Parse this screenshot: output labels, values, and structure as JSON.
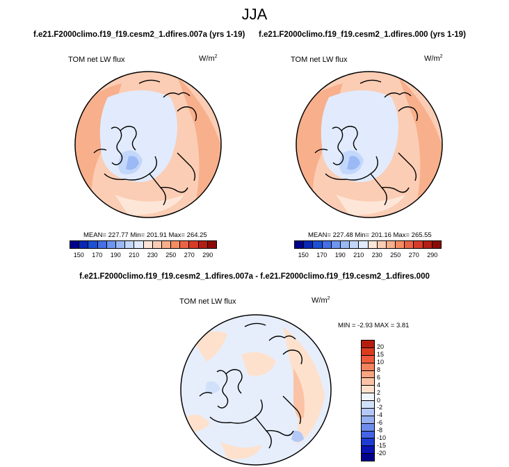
{
  "season": "JJA",
  "panels": [
    {
      "case_title": "f.e21.F2000climo.f19_f19.cesm2_1.dfires.007a (yrs 1-19)",
      "variable": "TOM net LW flux",
      "units_base": "W/m",
      "units_exp": "2",
      "stats": "MEAN= 227.77  Min= 201.91  Max= 264.25"
    },
    {
      "case_title": "f.e21.F2000climo.f19_f19.cesm2_1.dfires.000 (yrs 1-19)",
      "variable": "TOM net LW flux",
      "units_base": "W/m",
      "units_exp": "2",
      "stats": "MEAN= 227.48  Min= 201.16  Max= 265.55"
    }
  ],
  "colorbar": {
    "colors": [
      "#00008b",
      "#0a28b4",
      "#1e50d2",
      "#466ee6",
      "#6e96f0",
      "#9bb9f5",
      "#c3d7fa",
      "#e1ebfd",
      "#fde6d7",
      "#fbcdb4",
      "#f8af8c",
      "#f58c64",
      "#eb6446",
      "#d73c28",
      "#b41e14",
      "#8c0a05"
    ],
    "tick_labels": [
      "150",
      "170",
      "190",
      "210",
      "230",
      "250",
      "270",
      "290"
    ]
  },
  "difference": {
    "title": "f.e21.F2000climo.f19_f19.cesm2_1.dfires.007a - f.e21.F2000climo.f19_f19.cesm2_1.dfires.000",
    "variable": "TOM net LW flux",
    "units_base": "W/m",
    "units_exp": "2",
    "stats": "MIN =  -2.93 MAX =   3.81",
    "colorbar_colors_top_to_bottom": [
      "#b41e0f",
      "#dc3c1e",
      "#f05a3c",
      "#f5825f",
      "#f8a582",
      "#fbc3a5",
      "#fde1cd",
      "#f0f5fd",
      "#d2e1fa",
      "#b4c8f5",
      "#96aff0",
      "#6e8ceb",
      "#4664e6",
      "#1e3cd2",
      "#0a14b4",
      "#00008b"
    ],
    "tick_labels_top_to_bottom": [
      "20",
      "15",
      "10",
      "8",
      "6",
      "4",
      "2",
      "0",
      "-2",
      "-4",
      "-6",
      "-8",
      "-10",
      "-15",
      "-20"
    ]
  }
}
